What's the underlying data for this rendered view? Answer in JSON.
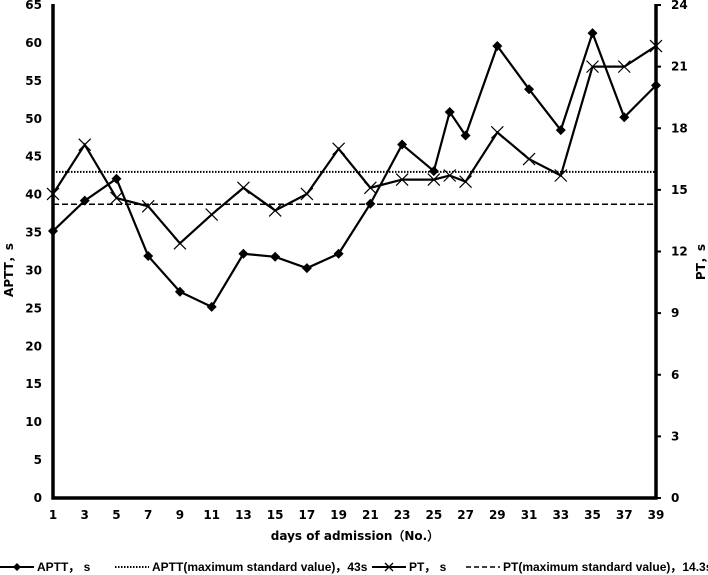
{
  "chart_data": {
    "type": "line",
    "title": "",
    "xlabel": "days of admission（No.）",
    "ylabel": "APTT，s",
    "y2label": "PT，s",
    "x_ticks": [
      1,
      3,
      5,
      7,
      9,
      11,
      13,
      15,
      17,
      19,
      21,
      23,
      25,
      27,
      29,
      31,
      33,
      35,
      37,
      39
    ],
    "xlim": [
      1,
      39
    ],
    "ylim": [
      0,
      65
    ],
    "y_ticks": [
      0,
      5,
      10,
      15,
      20,
      25,
      30,
      35,
      40,
      45,
      50,
      55,
      60,
      65
    ],
    "y2lim": [
      0,
      24
    ],
    "y2_ticks": [
      0,
      3,
      6,
      9,
      12,
      15,
      18,
      21,
      24
    ],
    "grid": false,
    "legend_position": "bottom",
    "series": [
      {
        "name": "APTT，s",
        "axis": "left",
        "marker": "diamond",
        "x": [
          1,
          3,
          5,
          7,
          9,
          11,
          13,
          15,
          17,
          19,
          21,
          23,
          25,
          26,
          27,
          29,
          31,
          33,
          35,
          37,
          39
        ],
        "values": [
          35.2,
          39.2,
          42.1,
          31.9,
          27.2,
          25.2,
          32.2,
          31.8,
          30.3,
          32.2,
          38.8,
          46.6,
          43.1,
          50.9,
          47.8,
          59.6,
          53.9,
          48.5,
          61.3,
          50.2,
          54.4
        ]
      },
      {
        "name": "PT，s",
        "axis": "right",
        "marker": "x",
        "x": [
          1,
          3,
          5,
          7,
          9,
          11,
          13,
          15,
          17,
          19,
          21,
          23,
          25,
          26,
          27,
          29,
          31,
          33,
          35,
          37,
          39
        ],
        "values": [
          14.8,
          17.2,
          14.6,
          14.2,
          12.4,
          13.8,
          15.1,
          14.0,
          14.8,
          17.0,
          15.1,
          15.5,
          15.5,
          15.7,
          15.4,
          17.8,
          16.5,
          15.7,
          21.0,
          21.0,
          22.0
        ]
      }
    ],
    "reference_lines": [
      {
        "name": "APTT(maximum standard value)，43s",
        "axis": "left",
        "value": 43,
        "style": "dotted"
      },
      {
        "name": "PT(maximum standard value)，14.3s",
        "axis": "right",
        "value": 14.3,
        "style": "dashed"
      }
    ]
  },
  "legend": {
    "aptt": "APTT， s",
    "aptt_ref": "APTT(maximum standard value)，43s",
    "pt": "PT， s",
    "pt_ref": "PT(maximum standard value)，14.3s"
  },
  "colors": {
    "line": "#000000",
    "background": "#ffffff"
  }
}
